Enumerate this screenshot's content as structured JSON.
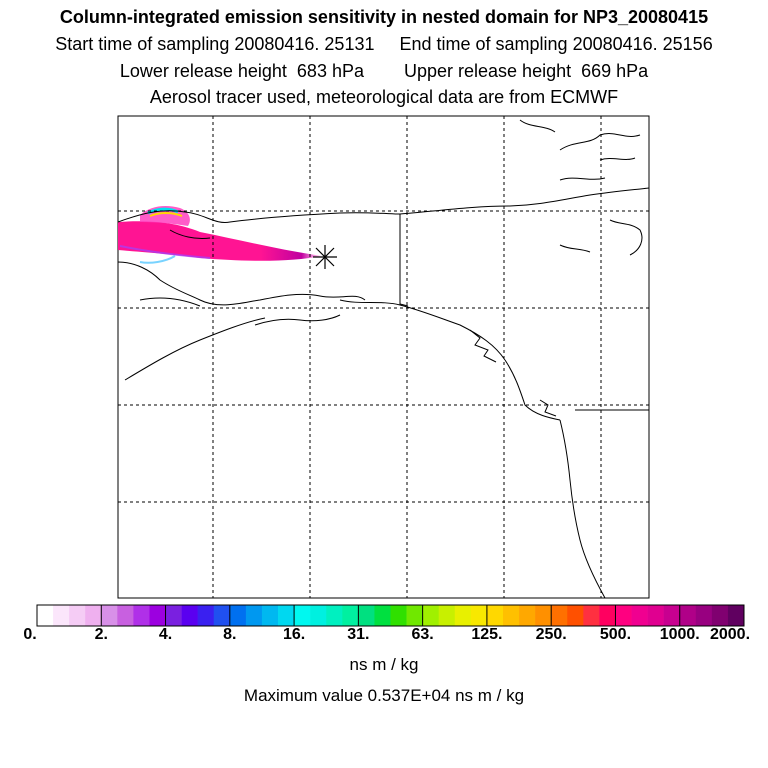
{
  "header": {
    "title": "Column-integrated emission sensitivity in nested domain for NP3_20080415",
    "line1": "Start time of sampling 20080416. 25131     End time of sampling 20080416. 25156",
    "line2": "Lower release height  683 hPa        Upper release height  669 hPa",
    "line3": "Aerosol tracer used, meteorological data are from ECMWF"
  },
  "map": {
    "region": "Alaska and western North America",
    "release_marker_icon": "asterisk-star-icon",
    "plume_color": "#ff1493"
  },
  "colorbar": {
    "tick_labels": [
      "0.",
      "2.",
      "4.",
      "8.",
      "16.",
      "31.",
      "63.",
      "125.",
      "250.",
      "500.",
      "1000.",
      "2000."
    ],
    "colors": [
      "#ffffff",
      "#fbe6fb",
      "#f5ccf5",
      "#efb0ef",
      "#d890e8",
      "#c860e0",
      "#b030e8",
      "#9c00e0",
      "#7a20e0",
      "#5a00f0",
      "#3a20f0",
      "#2050f0",
      "#0070f0",
      "#0098f0",
      "#00b8f0",
      "#00d8f0",
      "#00f8f0",
      "#00f0e0",
      "#00f0c0",
      "#00f0a0",
      "#00e080",
      "#00e040",
      "#30e000",
      "#70e800",
      "#a0f000",
      "#c8f000",
      "#e8f000",
      "#f8e800",
      "#ffd800",
      "#ffc000",
      "#ffa800",
      "#ff9000",
      "#ff7000",
      "#ff5000",
      "#ff3040",
      "#ff0060",
      "#ff0080",
      "#f00090",
      "#e00090",
      "#c80090",
      "#b00088",
      "#980080",
      "#800070",
      "#600060"
    ],
    "units": "ns m / kg",
    "maximum": "Maximum value  0.537E+04 ns m / kg"
  }
}
